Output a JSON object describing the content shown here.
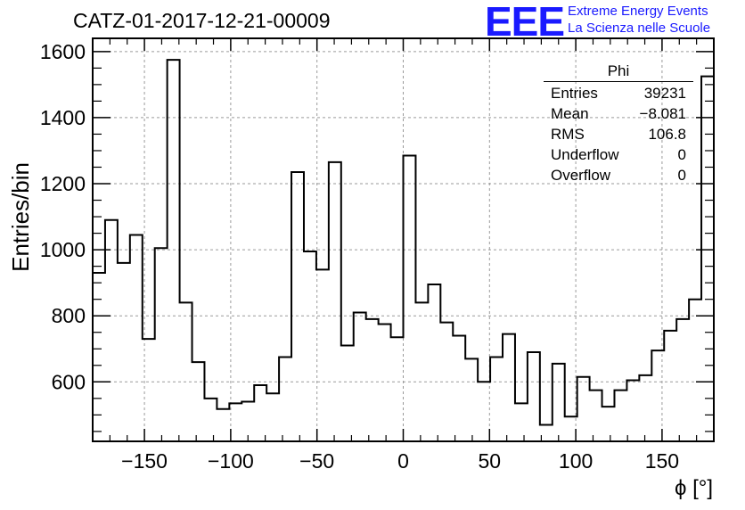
{
  "header": {
    "title": "CATZ-01-2017-12-21-00009",
    "logo_mark": "EEE",
    "logo_line1": "Extreme Energy Events",
    "logo_line2": "La Scienza nelle Scuole"
  },
  "stats_box": {
    "title": "Phi",
    "rows": [
      {
        "label": "Entries",
        "value": "39231"
      },
      {
        "label": "Mean",
        "value": "−8.081"
      },
      {
        "label": "RMS",
        "value": "106.8"
      },
      {
        "label": "Underflow",
        "value": "0"
      },
      {
        "label": "Overflow",
        "value": "0"
      }
    ]
  },
  "colors": {
    "line": "#000000",
    "grid": "#9a9a9a",
    "logo": "#1a1aff"
  },
  "chart_data": {
    "type": "histogram",
    "xlabel": "ϕ [°]",
    "ylabel": "Entries/bin",
    "xlim": [
      -180,
      180
    ],
    "ylim": [
      420,
      1640
    ],
    "grid": true,
    "bin_width": 7.2,
    "xticks": [
      -150,
      -100,
      -50,
      0,
      50,
      100,
      150
    ],
    "xtick_labels": [
      "−150",
      "−100",
      "−50",
      "0",
      "50",
      "100",
      "150"
    ],
    "yticks": [
      600,
      800,
      1000,
      1200,
      1400,
      1600
    ],
    "ytick_labels": [
      "600",
      "800",
      "1000",
      "1200",
      "1400",
      "1600"
    ],
    "bin_edges_start": -180,
    "values": [
      930,
      1090,
      960,
      1045,
      730,
      1005,
      1575,
      840,
      660,
      550,
      518,
      535,
      540,
      590,
      565,
      675,
      1235,
      995,
      940,
      1265,
      710,
      810,
      790,
      775,
      735,
      1285,
      840,
      895,
      780,
      740,
      670,
      600,
      675,
      745,
      535,
      690,
      470,
      655,
      495,
      615,
      575,
      525,
      575,
      605,
      620,
      695,
      755,
      790,
      850,
      1525
    ]
  }
}
